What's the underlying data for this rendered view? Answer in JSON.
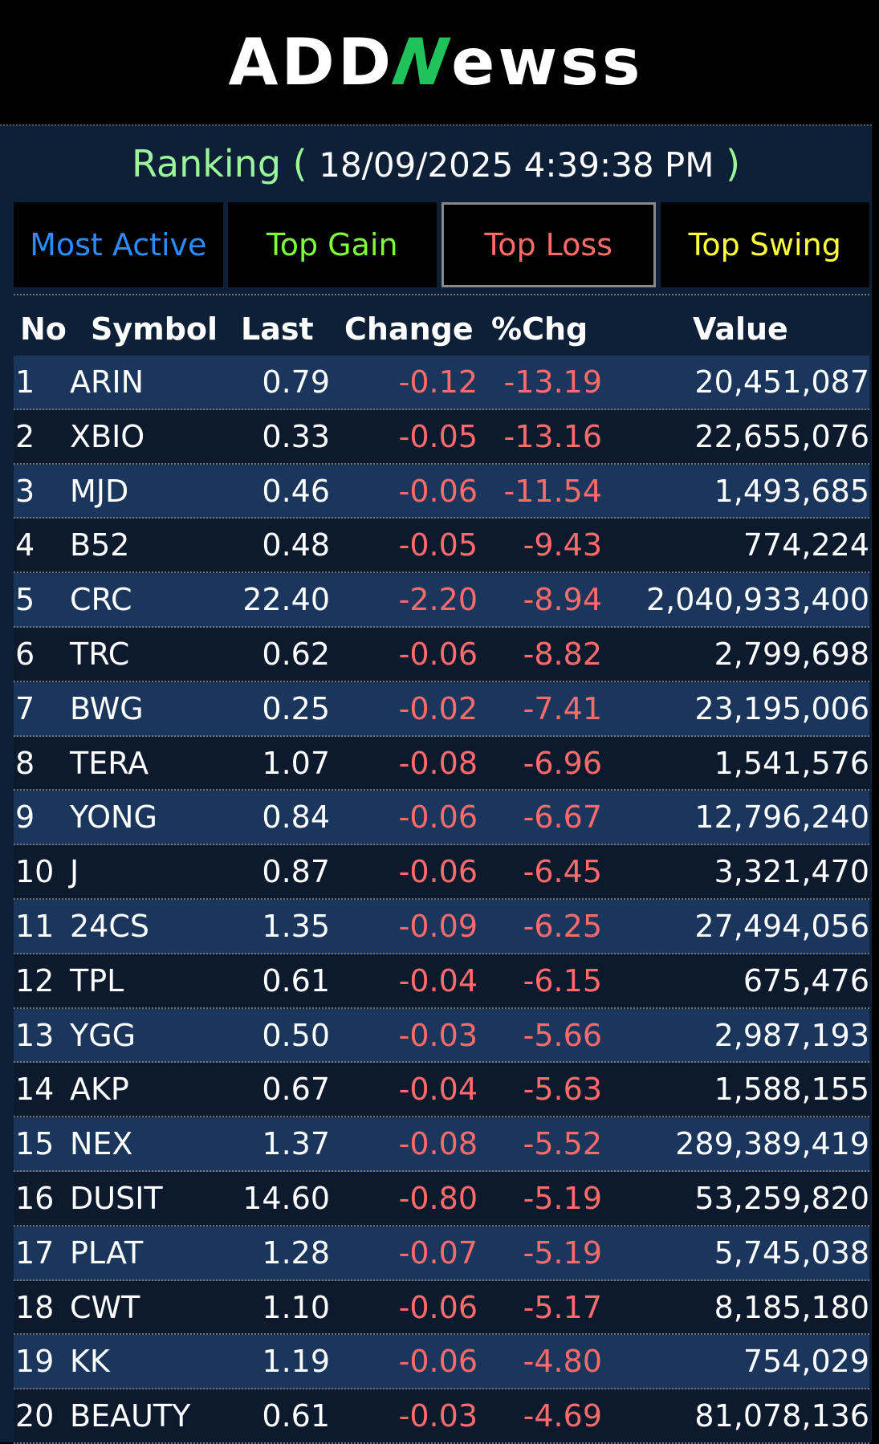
{
  "brand": {
    "logo_prefix": "ADD",
    "logo_n": "N",
    "logo_suffix": "ewss"
  },
  "ranking": {
    "label": "Ranking (",
    "timestamp": "18/09/2025 4:39:38 PM",
    "close": ")"
  },
  "tabs": [
    {
      "label": "Most Active",
      "color": "#2a8cff"
    },
    {
      "label": "Top Gain",
      "color": "#7dff3a"
    },
    {
      "label": "Top Loss",
      "color": "#ff6b6b",
      "active": true
    },
    {
      "label": "Top Swing",
      "color": "#ffff3a"
    }
  ],
  "columns": {
    "no": "No",
    "symbol": "Symbol",
    "last": "Last",
    "change": "Change",
    "pct": "%Chg",
    "value": "Value"
  },
  "rows": [
    {
      "no": "1",
      "symbol": "ARIN",
      "last": "0.79",
      "change": "-0.12",
      "pct": "-13.19",
      "value": "20,451,087"
    },
    {
      "no": "2",
      "symbol": "XBIO",
      "last": "0.33",
      "change": "-0.05",
      "pct": "-13.16",
      "value": "22,655,076"
    },
    {
      "no": "3",
      "symbol": "MJD",
      "last": "0.46",
      "change": "-0.06",
      "pct": "-11.54",
      "value": "1,493,685"
    },
    {
      "no": "4",
      "symbol": "B52",
      "last": "0.48",
      "change": "-0.05",
      "pct": "-9.43",
      "value": "774,224"
    },
    {
      "no": "5",
      "symbol": "CRC",
      "last": "22.40",
      "change": "-2.20",
      "pct": "-8.94",
      "value": "2,040,933,400"
    },
    {
      "no": "6",
      "symbol": "TRC",
      "last": "0.62",
      "change": "-0.06",
      "pct": "-8.82",
      "value": "2,799,698"
    },
    {
      "no": "7",
      "symbol": "BWG",
      "last": "0.25",
      "change": "-0.02",
      "pct": "-7.41",
      "value": "23,195,006"
    },
    {
      "no": "8",
      "symbol": "TERA",
      "last": "1.07",
      "change": "-0.08",
      "pct": "-6.96",
      "value": "1,541,576"
    },
    {
      "no": "9",
      "symbol": "YONG",
      "last": "0.84",
      "change": "-0.06",
      "pct": "-6.67",
      "value": "12,796,240"
    },
    {
      "no": "10",
      "symbol": "J",
      "last": "0.87",
      "change": "-0.06",
      "pct": "-6.45",
      "value": "3,321,470"
    },
    {
      "no": "11",
      "symbol": "24CS",
      "last": "1.35",
      "change": "-0.09",
      "pct": "-6.25",
      "value": "27,494,056"
    },
    {
      "no": "12",
      "symbol": "TPL",
      "last": "0.61",
      "change": "-0.04",
      "pct": "-6.15",
      "value": "675,476"
    },
    {
      "no": "13",
      "symbol": "YGG",
      "last": "0.50",
      "change": "-0.03",
      "pct": "-5.66",
      "value": "2,987,193"
    },
    {
      "no": "14",
      "symbol": "AKP",
      "last": "0.67",
      "change": "-0.04",
      "pct": "-5.63",
      "value": "1,588,155"
    },
    {
      "no": "15",
      "symbol": "NEX",
      "last": "1.37",
      "change": "-0.08",
      "pct": "-5.52",
      "value": "289,389,419"
    },
    {
      "no": "16",
      "symbol": "DUSIT",
      "last": "14.60",
      "change": "-0.80",
      "pct": "-5.19",
      "value": "53,259,820"
    },
    {
      "no": "17",
      "symbol": "PLAT",
      "last": "1.28",
      "change": "-0.07",
      "pct": "-5.19",
      "value": "5,745,038"
    },
    {
      "no": "18",
      "symbol": "CWT",
      "last": "1.10",
      "change": "-0.06",
      "pct": "-5.17",
      "value": "8,185,180"
    },
    {
      "no": "19",
      "symbol": "KK",
      "last": "1.19",
      "change": "-0.06",
      "pct": "-4.80",
      "value": "754,029"
    },
    {
      "no": "20",
      "symbol": "BEAUTY",
      "last": "0.61",
      "change": "-0.03",
      "pct": "-4.69",
      "value": "81,078,136"
    }
  ]
}
